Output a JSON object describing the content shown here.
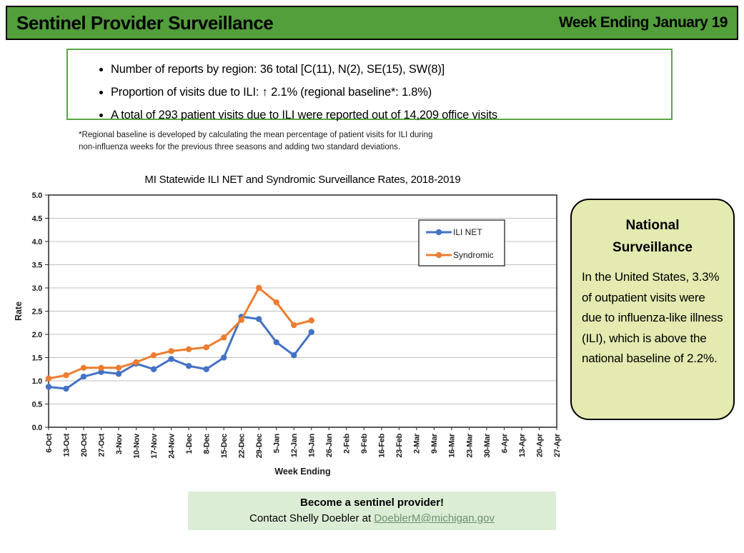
{
  "header": {
    "title": "Sentinel Provider Surveillance",
    "week_ending": "Week Ending January 19"
  },
  "summary_box": {
    "bullets": [
      "Number of reports by region: 36 total [C(11), N(2), SE(15), SW(8)]",
      "Proportion of visits due to ILI: ↑ 2.1% (regional baseline*: 1.8%)",
      "A total of 293 patient visits due to ILI were reported out of 14,209 office visits"
    ]
  },
  "footnote": {
    "line1": "*Regional baseline is developed by calculating the mean percentage of patient visits for ILI during",
    "line2": "non-influenza weeks for the previous three seasons and adding two standard deviations."
  },
  "chart_data": {
    "type": "line",
    "title": "MI Statewide ILI NET and Syndromic Surveillance Rates, 2018-2019",
    "xlabel": "Week Ending",
    "ylabel": "Rate",
    "ylim": [
      0,
      5
    ],
    "ytick_step": 0.5,
    "grid": true,
    "legend_position": "inside-top-right",
    "categories": [
      "6-Oct",
      "13-Oct",
      "20-Oct",
      "27-Oct",
      "3-Nov",
      "10-Nov",
      "17-Nov",
      "24-Nov",
      "1-Dec",
      "8-Dec",
      "15-Dec",
      "22-Dec",
      "29-Dec",
      "5-Jan",
      "12-Jan",
      "19-Jan",
      "26-Jan",
      "2-Feb",
      "9-Feb",
      "16-Feb",
      "23-Feb",
      "2-Mar",
      "9-Mar",
      "16-Mar",
      "23-Mar",
      "30-Mar",
      "6-Apr",
      "13-Apr",
      "20-Apr",
      "27-Apr"
    ],
    "series": [
      {
        "name": "ILI NET",
        "color": "#4472C4",
        "values": [
          0.87,
          0.83,
          1.09,
          1.19,
          1.15,
          1.37,
          1.25,
          1.47,
          1.32,
          1.25,
          1.5,
          2.38,
          2.33,
          1.83,
          1.55,
          2.05
        ]
      },
      {
        "name": "Syndromic",
        "color": "#ED7D31",
        "values": [
          1.05,
          1.12,
          1.28,
          1.28,
          1.28,
          1.4,
          1.55,
          1.64,
          1.68,
          1.72,
          1.93,
          2.31,
          3.0,
          2.69,
          2.2,
          2.3
        ]
      }
    ]
  },
  "national_box": {
    "title_line1": "National",
    "title_line2": "Surveillance",
    "body": "In the United States, 3.3% of outpatient visits were due to influenza-like illness (ILI), which is above the national baseline of 2.2%."
  },
  "contact_box": {
    "headline": "Become a sentinel provider!",
    "contact_prefix": "Contact Shelly Doebler at ",
    "email": "DoeblerM@michigan.gov"
  },
  "colors": {
    "header_green": "#529F3B",
    "summary_border_green": "#5BA845",
    "national_box_fill": "#E4EAB0",
    "contact_box_fill": "#DBEDD5",
    "ili_net_blue": "#4472C4",
    "syndromic_orange": "#ED7D31",
    "email_link_green": "#6F8F74",
    "gridline_gray": "#BFBFBF"
  }
}
